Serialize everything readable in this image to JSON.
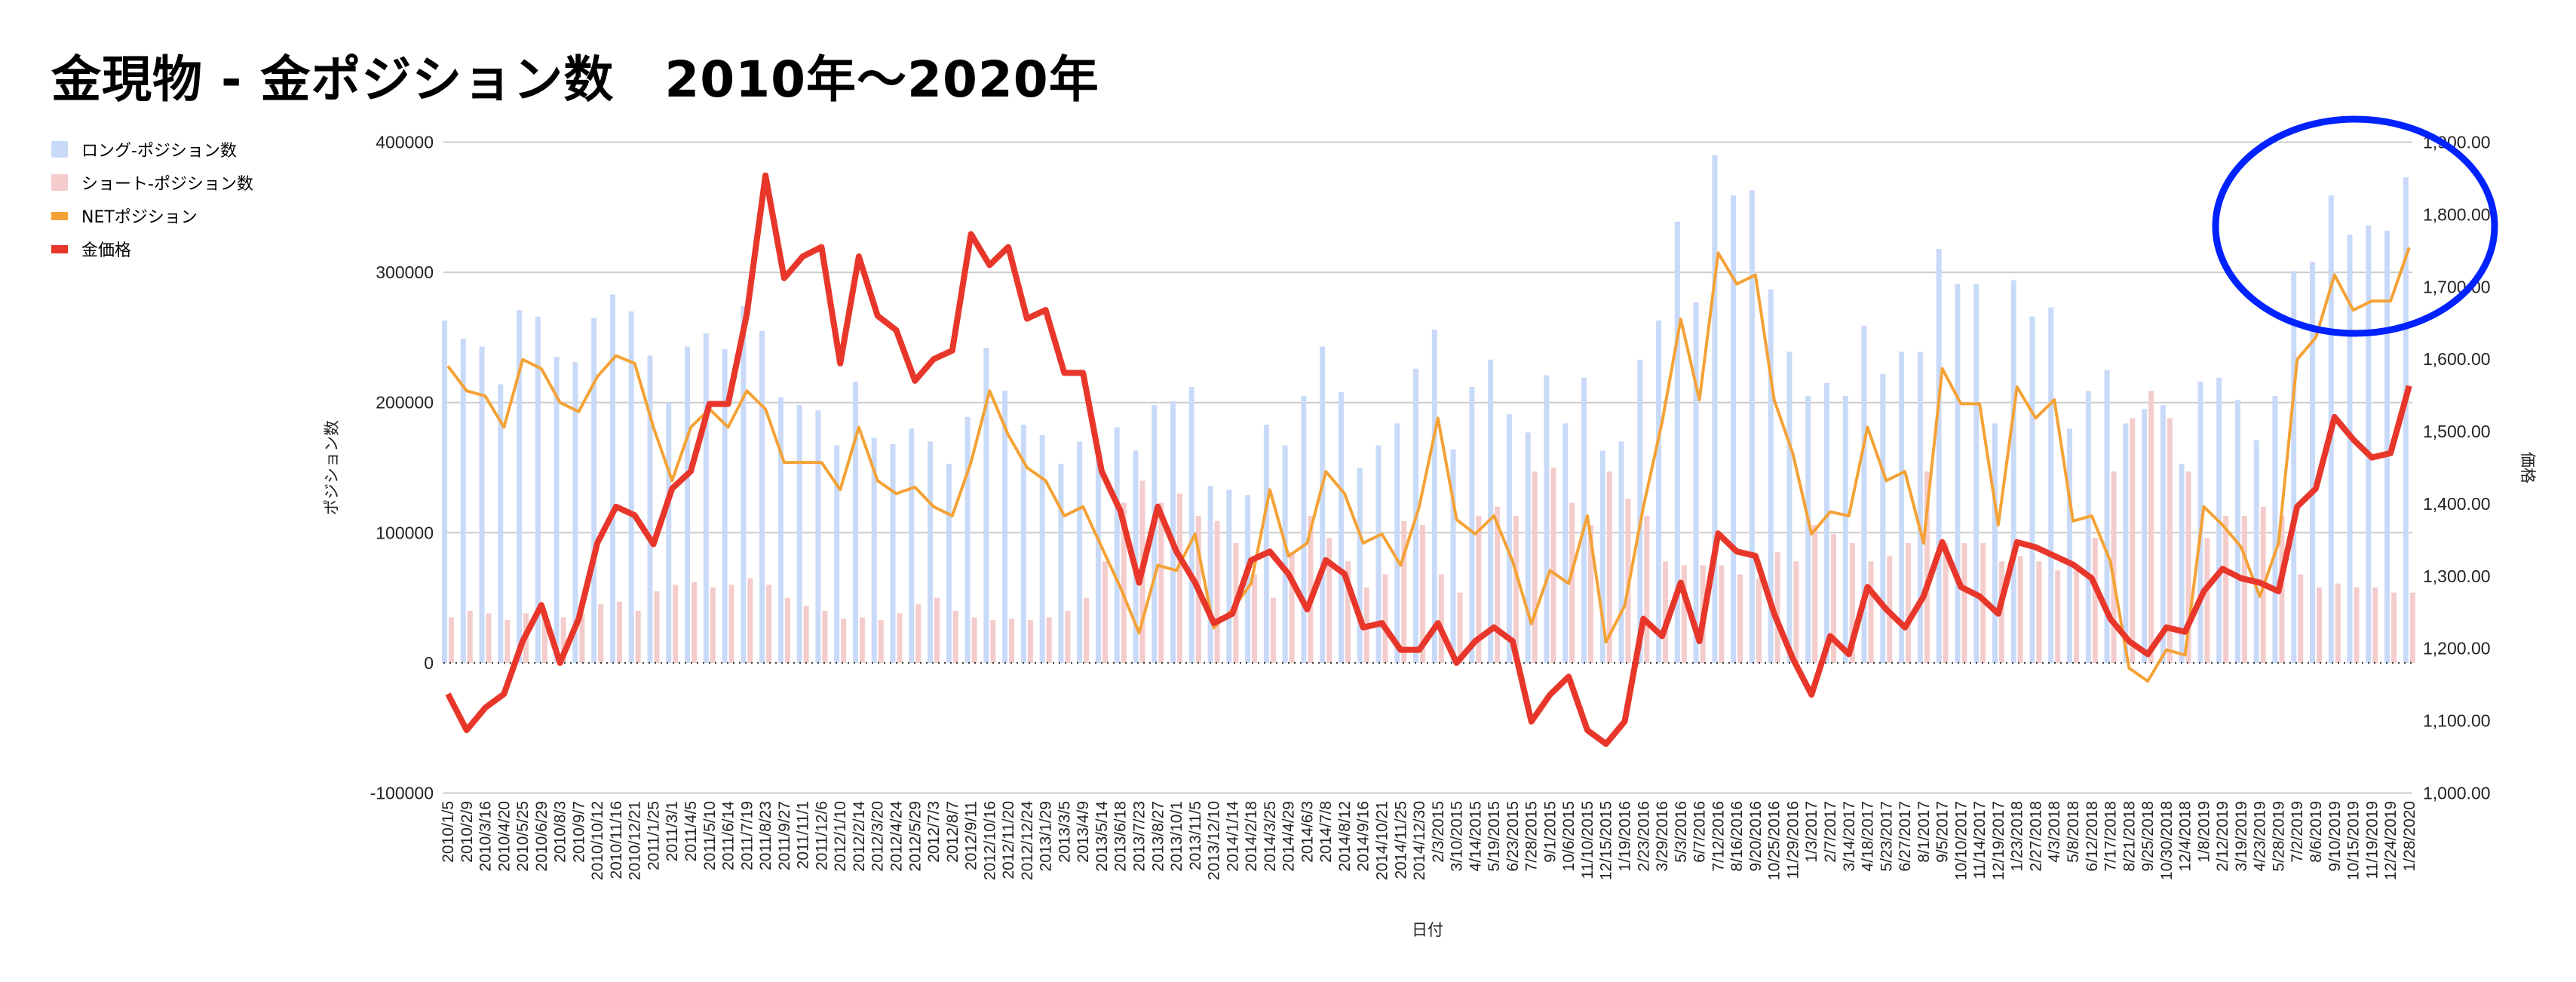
{
  "title": "金現物 - 金ポジション数　2010年〜2020年",
  "legend": [
    {
      "label": "ロング-ポジション数",
      "color": "#c9daf8"
    },
    {
      "label": "ショート-ポジション数",
      "color": "#f4cccc"
    },
    {
      "label": "NETポジション",
      "color": "#f4a236"
    },
    {
      "label": "金価格",
      "color": "#e8372a"
    }
  ],
  "annotation": {
    "shape": "ellipse",
    "color": "#0022ff",
    "target": "2019-2020 NET position and long position highs"
  },
  "chart_data": {
    "type": "bar+line",
    "title": "金現物 - 金ポジション数　2010年〜2020年",
    "xlabel": "日付",
    "ylabel": "ポジション数",
    "y2label": "価格",
    "ylim": [
      -100000,
      400000
    ],
    "y2lim": [
      1000,
      1900
    ],
    "yticks": [
      "400000",
      "300000",
      "200000",
      "100000",
      "0",
      "-100000"
    ],
    "y2ticks": [
      "1,900.00",
      "1,800.00",
      "1,700.00",
      "1,600.00",
      "1,500.00",
      "1,400.00",
      "1,300.00",
      "1,200.00",
      "1,100.00",
      "1,000.00"
    ],
    "grid": true,
    "legend_position": "left",
    "categories": [
      "2010/1/5",
      "2010/2/9",
      "2010/3/16",
      "2010/4/20",
      "2010/5/25",
      "2010/6/29",
      "2010/8/3",
      "2010/9/7",
      "2010/10/12",
      "2010/11/16",
      "2010/12/21",
      "2011/1/25",
      "2011/3/1",
      "2011/4/5",
      "2011/5/10",
      "2011/6/14",
      "2011/7/19",
      "2011/8/23",
      "2011/9/27",
      "2011/11/1",
      "2011/12/6",
      "2012/1/10",
      "2012/2/14",
      "2012/3/20",
      "2012/4/24",
      "2012/5/29",
      "2012/7/3",
      "2012/8/7",
      "2012/9/11",
      "2012/10/16",
      "2012/11/20",
      "2012/12/24",
      "2013/1/29",
      "2013/3/5",
      "2013/4/9",
      "2013/5/14",
      "2013/6/18",
      "2013/7/23",
      "2013/8/27",
      "2013/10/1",
      "2013/11/5",
      "2013/12/10",
      "2014/1/14",
      "2014/2/18",
      "2014/3/25",
      "2014/4/29",
      "2014/6/3",
      "2014/7/8",
      "2014/8/12",
      "2014/9/16",
      "2014/10/21",
      "2014/11/25",
      "2014/12/30",
      "2/3/2015",
      "3/10/2015",
      "4/14/2015",
      "5/19/2015",
      "6/23/2015",
      "7/28/2015",
      "9/1/2015",
      "10/6/2015",
      "11/10/2015",
      "12/15/2015",
      "1/19/2016",
      "2/23/2016",
      "3/29/2016",
      "5/3/2016",
      "6/7/2016",
      "7/12/2016",
      "8/16/2016",
      "9/20/2016",
      "10/25/2016",
      "11/29/2016",
      "1/3/2017",
      "2/7/2017",
      "3/14/2017",
      "4/18/2017",
      "5/23/2017",
      "6/27/2017",
      "8/1/2017",
      "9/5/2017",
      "10/10/2017",
      "11/14/2017",
      "12/19/2017",
      "1/23/2018",
      "2/27/2018",
      "4/3/2018",
      "5/8/2018",
      "6/12/2018",
      "7/17/2018",
      "8/21/2018",
      "9/25/2018",
      "10/30/2018",
      "12/4/2018",
      "1/8/2019",
      "2/12/2019",
      "3/19/2019",
      "4/23/2019",
      "5/28/2019",
      "7/2/2019",
      "8/6/2019",
      "9/10/2019",
      "10/15/2019",
      "11/19/2019",
      "12/24/2019",
      "1/28/2020"
    ],
    "series": [
      {
        "name": "ロング-ポジション数",
        "type": "bar",
        "axis": "left",
        "color": "#c9daf8",
        "values": [
          263000,
          249000,
          243000,
          214000,
          271000,
          266000,
          235000,
          231000,
          265000,
          283000,
          270000,
          236000,
          200000,
          243000,
          253000,
          241000,
          274000,
          255000,
          204000,
          198000,
          194000,
          167000,
          216000,
          173000,
          168000,
          180000,
          170000,
          153000,
          189000,
          242000,
          209000,
          183000,
          175000,
          153000,
          170000,
          167000,
          181000,
          163000,
          198000,
          201000,
          212000,
          136000,
          133000,
          129000,
          183000,
          167000,
          205000,
          243000,
          208000,
          150000,
          167000,
          184000,
          226000,
          256000,
          164000,
          212000,
          233000,
          191000,
          177000,
          221000,
          184000,
          219000,
          163000,
          170000,
          233000,
          263000,
          339000,
          277000,
          390000,
          359000,
          363000,
          287000,
          239000,
          205000,
          215000,
          205000,
          259000,
          222000,
          239000,
          239000,
          318000,
          291000,
          291000,
          184000,
          294000,
          266000,
          273000,
          180000,
          209000,
          225000,
          184000,
          195000,
          198000,
          153000,
          216000,
          219000,
          202000,
          171000,
          205000,
          301000,
          308000,
          359000,
          329000,
          336000,
          332000,
          373000
        ]
      },
      {
        "name": "ショート-ポジション数",
        "type": "bar",
        "axis": "left",
        "color": "#f4cccc",
        "values": [
          35000,
          40000,
          38000,
          33000,
          38000,
          40000,
          35000,
          38000,
          45000,
          47000,
          40000,
          55000,
          60000,
          62000,
          58000,
          60000,
          65000,
          60000,
          50000,
          44000,
          40000,
          34000,
          35000,
          33000,
          38000,
          45000,
          50000,
          40000,
          35000,
          33000,
          34000,
          33000,
          35000,
          40000,
          50000,
          78000,
          123000,
          140000,
          123000,
          130000,
          113000,
          109000,
          92000,
          68000,
          50000,
          85000,
          113000,
          96000,
          78000,
          58000,
          68000,
          109000,
          106000,
          68000,
          54000,
          113000,
          120000,
          113000,
          147000,
          150000,
          123000,
          106000,
          147000,
          126000,
          113000,
          78000,
          75000,
          75000,
          75000,
          68000,
          65000,
          85000,
          78000,
          106000,
          99000,
          92000,
          78000,
          82000,
          92000,
          147000,
          92000,
          92000,
          92000,
          78000,
          82000,
          78000,
          71000,
          71000,
          96000,
          147000,
          188000,
          209000,
          188000,
          147000,
          96000,
          113000,
          113000,
          120000,
          113000,
          68000,
          58000,
          61000,
          58000,
          58000,
          54000,
          54000
        ]
      },
      {
        "name": "NETポジション",
        "type": "line",
        "axis": "left",
        "color": "#f4a236",
        "values": [
          228000,
          209000,
          205000,
          181000,
          233000,
          226000,
          200000,
          193000,
          220000,
          236000,
          230000,
          181000,
          140000,
          181000,
          195000,
          181000,
          209000,
          195000,
          154000,
          154000,
          154000,
          133000,
          181000,
          140000,
          130000,
          135000,
          120000,
          113000,
          154000,
          209000,
          175000,
          150000,
          140000,
          113000,
          120000,
          89000,
          58000,
          23000,
          75000,
          71000,
          99000,
          27000,
          41000,
          61000,
          133000,
          82000,
          92000,
          147000,
          130000,
          92000,
          99000,
          75000,
          120000,
          188000,
          110000,
          99000,
          113000,
          78000,
          30000,
          71000,
          61000,
          113000,
          16000,
          44000,
          120000,
          185000,
          264000,
          202000,
          315000,
          291000,
          298000,
          202000,
          161000,
          99000,
          116000,
          113000,
          181000,
          140000,
          147000,
          92000,
          226000,
          199000,
          199000,
          106000,
          212000,
          188000,
          202000,
          109000,
          113000,
          78000,
          -4000,
          -14000,
          10000,
          6000,
          120000,
          106000,
          89000,
          51000,
          92000,
          233000,
          250000,
          298000,
          271000,
          278000,
          278000,
          319000
        ]
      },
      {
        "name": "金価格",
        "type": "line",
        "axis": "right",
        "color": "#e8372a",
        "values": [
          1137,
          1087,
          1118,
          1137,
          1210,
          1260,
          1180,
          1241,
          1346,
          1396,
          1384,
          1344,
          1421,
          1445,
          1538,
          1538,
          1662,
          1854,
          1712,
          1742,
          1755,
          1594,
          1742,
          1660,
          1640,
          1570,
          1600,
          1612,
          1773,
          1730,
          1755,
          1656,
          1668,
          1581,
          1581,
          1445,
          1390,
          1291,
          1396,
          1334,
          1291,
          1235,
          1248,
          1322,
          1334,
          1303,
          1254,
          1322,
          1303,
          1229,
          1235,
          1198,
          1198,
          1235,
          1180,
          1210,
          1229,
          1210,
          1099,
          1136,
          1161,
          1087,
          1068,
          1099,
          1241,
          1217,
          1291,
          1210,
          1359,
          1334,
          1328,
          1248,
          1186,
          1136,
          1217,
          1192,
          1285,
          1254,
          1229,
          1272,
          1347,
          1285,
          1272,
          1248,
          1347,
          1340,
          1328,
          1316,
          1297,
          1241,
          1210,
          1192,
          1229,
          1223,
          1279,
          1310,
          1297,
          1291,
          1279,
          1396,
          1421,
          1520,
          1489,
          1464,
          1470,
          1563
        ]
      }
    ]
  }
}
